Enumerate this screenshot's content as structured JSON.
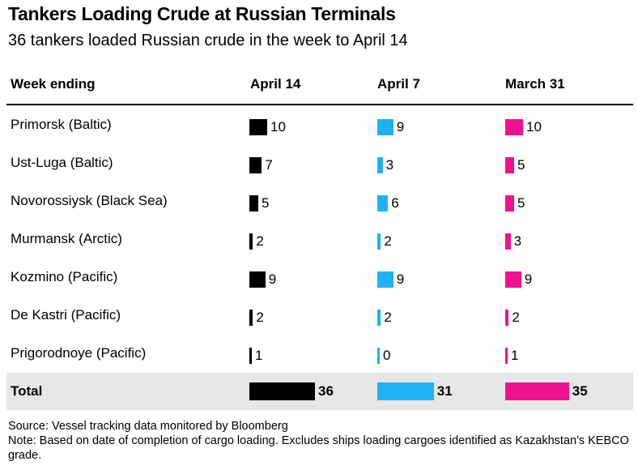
{
  "header": {
    "title": "Tankers Loading Crude at Russian Terminals",
    "subtitle": "36 tankers loaded Russian crude in the week to April 14"
  },
  "columns": [
    "Week ending",
    "April 14",
    "April 7",
    "March 31"
  ],
  "colors": {
    "april14": "#000000",
    "april7": "#1fb1f5",
    "march31": "#f0118f",
    "total_bg": "#e7e7e7"
  },
  "footer": {
    "source": "Source: Vessel tracking data monitored by Bloomberg",
    "note": "Note: Based on date of completion of cargo loading. Excludes ships loading cargoes identified as Kazakhstan's KEBCO grade."
  },
  "chart_data": {
    "type": "table",
    "title": "Tankers Loading Crude at Russian Terminals",
    "subtitle": "36 tankers loaded Russian crude in the week to April 14",
    "row_header": "Week ending",
    "series": [
      {
        "name": "April 14",
        "color": "#000000",
        "values": [
          10,
          7,
          5,
          2,
          9,
          2,
          1
        ],
        "total": 36
      },
      {
        "name": "April 7",
        "color": "#1fb1f5",
        "values": [
          9,
          3,
          6,
          2,
          9,
          2,
          0
        ],
        "total": 31
      },
      {
        "name": "March 31",
        "color": "#f0118f",
        "values": [
          10,
          5,
          5,
          3,
          9,
          2,
          1
        ],
        "total": 35
      }
    ],
    "categories": [
      "Primorsk (Baltic)",
      "Ust-Luga (Baltic)",
      "Novorossiysk (Black Sea)",
      "Murmansk (Arctic)",
      "Kozmino (Pacific)",
      "De Kastri (Pacific)",
      "Prigorodnoye (Pacific)"
    ],
    "total_label": "Total"
  }
}
